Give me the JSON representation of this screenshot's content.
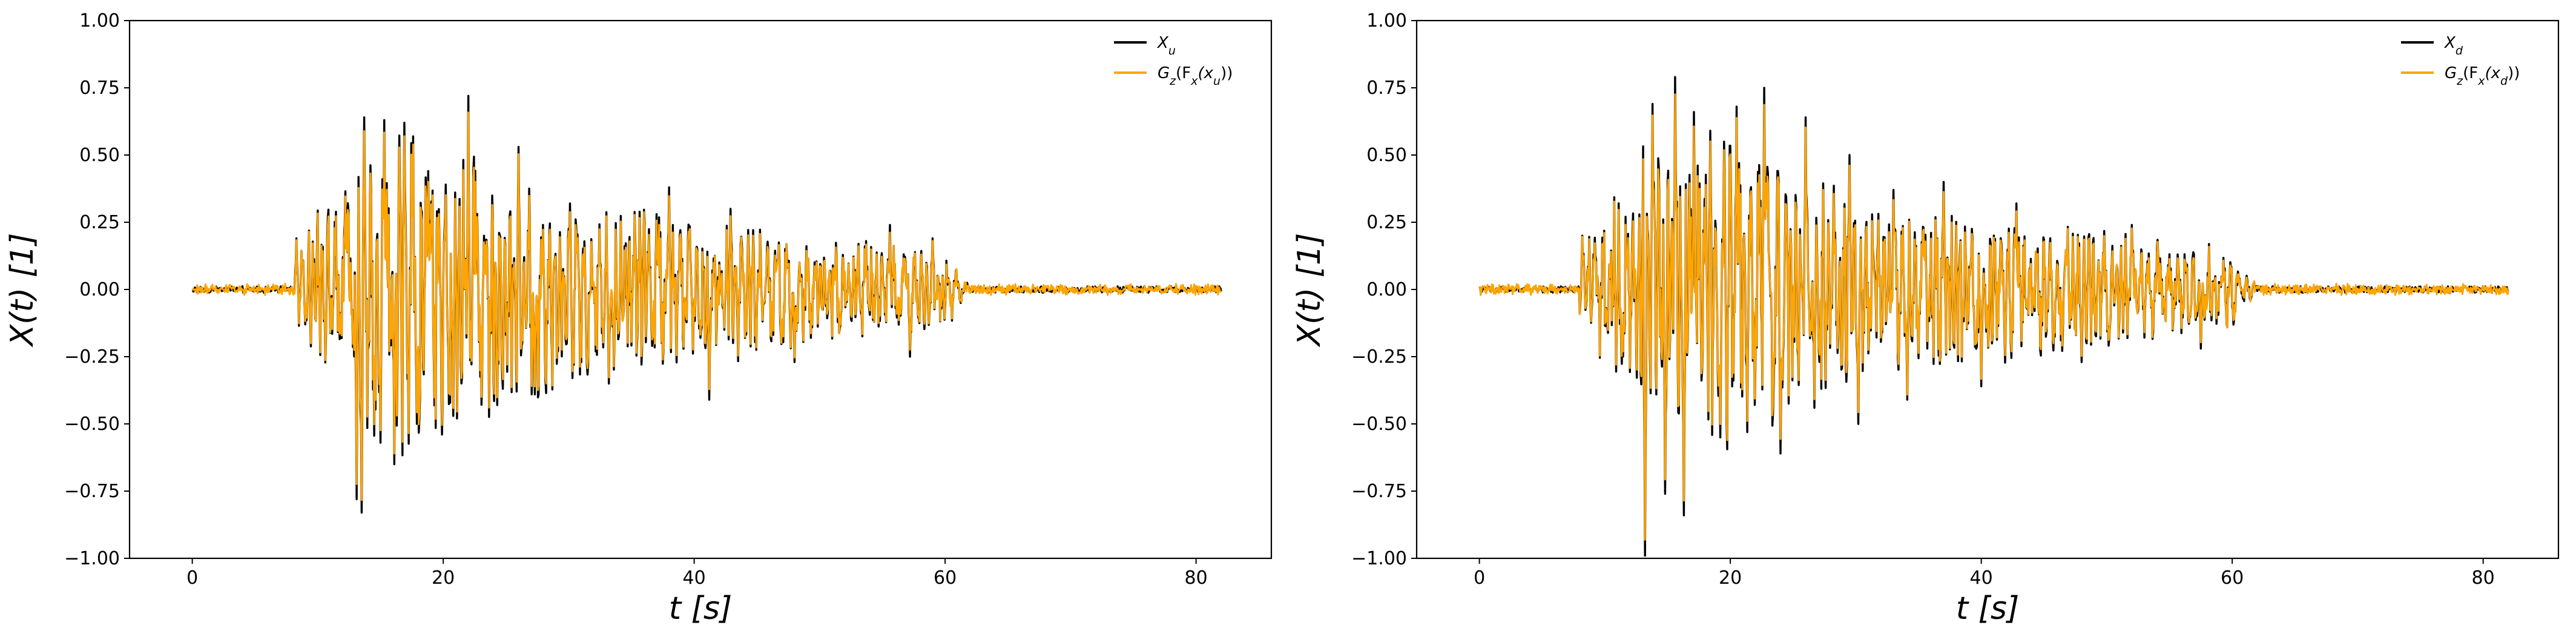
{
  "chart_data": [
    {
      "type": "line",
      "panel": "left",
      "title": "",
      "xlabel": "t  [s]",
      "ylabel": "X(t)  [1]",
      "xlim": [
        -5,
        86
      ],
      "ylim": [
        -1.0,
        1.0
      ],
      "x_ticks": [
        0,
        20,
        40,
        60,
        80
      ],
      "x_tick_labels": [
        "0",
        "20",
        "40",
        "60",
        "80"
      ],
      "y_ticks": [
        -1.0,
        -0.75,
        -0.5,
        -0.25,
        0.0,
        0.25,
        0.5,
        0.75,
        1.0
      ],
      "y_tick_labels": [
        "−1.00",
        "−0.75",
        "−0.50",
        "−0.25",
        "0.00",
        "0.25",
        "0.50",
        "0.75",
        "1.00"
      ],
      "grid": false,
      "legend_position": "top-right",
      "signal": {
        "duration_s": 82,
        "onset_s": 8.2,
        "strong_end_s": 60,
        "noise_level": 0.012,
        "peaks": [
          {
            "t": 8.3,
            "v": 0.19
          },
          {
            "t": 9.0,
            "v": -0.13
          },
          {
            "t": 13.1,
            "v": -0.78
          },
          {
            "t": 13.5,
            "v": -0.83
          },
          {
            "t": 13.7,
            "v": 0.64
          },
          {
            "t": 15.3,
            "v": 0.63
          },
          {
            "t": 15.0,
            "v": -0.57
          },
          {
            "t": 16.1,
            "v": -0.65
          },
          {
            "t": 16.9,
            "v": 0.62
          },
          {
            "t": 17.9,
            "v": -0.5
          },
          {
            "t": 18.8,
            "v": 0.44
          },
          {
            "t": 20.2,
            "v": 0.39
          },
          {
            "t": 20.8,
            "v": -0.47
          },
          {
            "t": 22.0,
            "v": 0.72
          },
          {
            "t": 24.3,
            "v": -0.43
          },
          {
            "t": 26.0,
            "v": 0.53
          },
          {
            "t": 27.3,
            "v": -0.39
          },
          {
            "t": 30.1,
            "v": 0.32
          },
          {
            "t": 33.2,
            "v": -0.35
          },
          {
            "t": 37.0,
            "v": 0.28
          },
          {
            "t": 38.0,
            "v": 0.38
          },
          {
            "t": 41.2,
            "v": -0.41
          },
          {
            "t": 42.9,
            "v": 0.3
          },
          {
            "t": 48.0,
            "v": -0.27
          },
          {
            "t": 55.6,
            "v": 0.24
          },
          {
            "t": 57.2,
            "v": -0.25
          },
          {
            "t": 59.0,
            "v": 0.19
          }
        ]
      },
      "series": [
        {
          "name": "X_u",
          "sub": "u",
          "color": "#000000",
          "role": "original"
        },
        {
          "name": "G_z(F_x(x_u))",
          "sub": "u",
          "color": "#FFA500",
          "role": "reconstruction"
        }
      ]
    },
    {
      "type": "line",
      "panel": "right",
      "title": "",
      "xlabel": "t  [s]",
      "ylabel": "X(t)  [1]",
      "xlim": [
        -5,
        86
      ],
      "ylim": [
        -1.0,
        1.0
      ],
      "x_ticks": [
        0,
        20,
        40,
        60,
        80
      ],
      "x_tick_labels": [
        "0",
        "20",
        "40",
        "60",
        "80"
      ],
      "y_ticks": [
        -1.0,
        -0.75,
        -0.5,
        -0.25,
        0.0,
        0.25,
        0.5,
        0.75,
        1.0
      ],
      "y_tick_labels": [
        "−1.00",
        "−0.75",
        "−0.50",
        "−0.25",
        "0.00",
        "0.25",
        "0.50",
        "0.75",
        "1.00"
      ],
      "grid": false,
      "legend_position": "top-right",
      "signal": {
        "duration_s": 82,
        "onset_s": 8.0,
        "strong_end_s": 60,
        "noise_level": 0.012,
        "peaks": [
          {
            "t": 8.2,
            "v": 0.2
          },
          {
            "t": 13.2,
            "v": -0.99
          },
          {
            "t": 13.8,
            "v": 0.69
          },
          {
            "t": 14.8,
            "v": -0.76
          },
          {
            "t": 15.6,
            "v": 0.79
          },
          {
            "t": 16.3,
            "v": -0.84
          },
          {
            "t": 17.1,
            "v": 0.66
          },
          {
            "t": 18.4,
            "v": 0.59
          },
          {
            "t": 19.2,
            "v": -0.55
          },
          {
            "t": 20.5,
            "v": 0.68
          },
          {
            "t": 22.7,
            "v": 0.75
          },
          {
            "t": 24.0,
            "v": -0.61
          },
          {
            "t": 26.0,
            "v": 0.64
          },
          {
            "t": 26.7,
            "v": -0.44
          },
          {
            "t": 29.5,
            "v": 0.5
          },
          {
            "t": 30.2,
            "v": -0.5
          },
          {
            "t": 33.0,
            "v": 0.37
          },
          {
            "t": 34.1,
            "v": -0.41
          },
          {
            "t": 37.0,
            "v": 0.4
          },
          {
            "t": 40.0,
            "v": -0.36
          },
          {
            "t": 42.8,
            "v": 0.32
          },
          {
            "t": 48.0,
            "v": -0.27
          },
          {
            "t": 52.0,
            "v": 0.24
          },
          {
            "t": 57.5,
            "v": -0.22
          }
        ]
      },
      "series": [
        {
          "name": "X_d",
          "sub": "d",
          "color": "#000000",
          "role": "original"
        },
        {
          "name": "G_z(F_x(x_d))",
          "sub": "d",
          "color": "#FFA500",
          "role": "reconstruction"
        }
      ]
    }
  ]
}
